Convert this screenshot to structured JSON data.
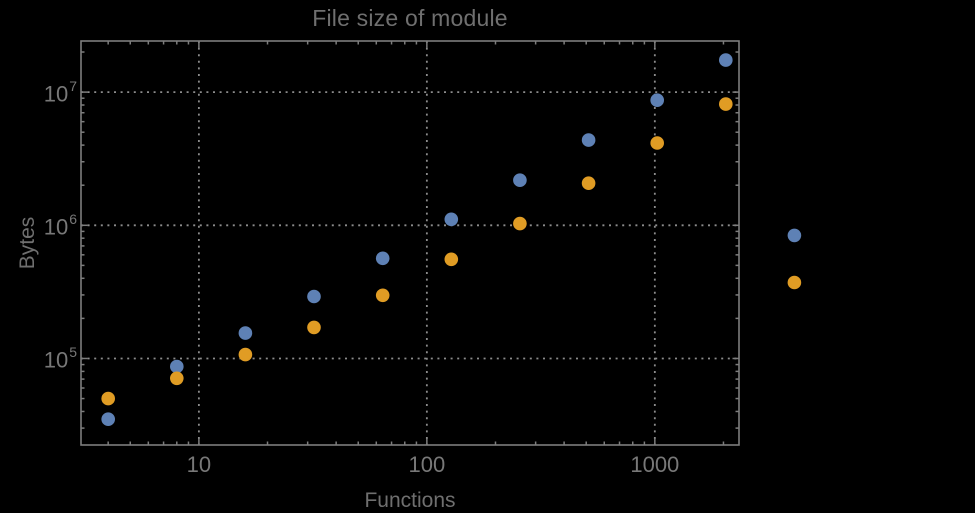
{
  "colors": {
    "background": "#000000",
    "frame": "#7d7d7d",
    "grid": "#8c8c8c",
    "text": "#6f6f6f",
    "tick_text": "#787878",
    "series_blue": "#5e81b5",
    "series_orange": "#e09c24"
  },
  "chart_data": {
    "type": "scatter",
    "title": "File size of module",
    "xlabel": "Functions",
    "ylabel": "Bytes",
    "x_scale": "log",
    "y_scale": "log",
    "xlim": [
      3.04,
      2340
    ],
    "ylim": [
      22400,
      24200000
    ],
    "grid": "major-dotted",
    "legend": "none",
    "frame": true,
    "x_major_ticks": [
      10,
      100,
      1000
    ],
    "x_tick_labels": [
      "10",
      "100",
      "1000"
    ],
    "y_major_ticks": [
      100000,
      1000000,
      10000000
    ],
    "y_tick_base": "10",
    "y_tick_exponents": [
      "5",
      "6",
      "7"
    ],
    "x": [
      4,
      8,
      16,
      32,
      64,
      128,
      256,
      512,
      1024,
      2048,
      4096
    ],
    "series": [
      {
        "name": "blue",
        "color": "#5e81b5",
        "values": [
          35000,
          87000,
          155000,
          292000,
          565000,
          1110000,
          2180000,
          4360000,
          8700000,
          17400000,
          840000
        ]
      },
      {
        "name": "orange",
        "color": "#e09c24",
        "values": [
          50000,
          71000,
          107000,
          171000,
          298000,
          555000,
          1030000,
          2070000,
          4150000,
          8130000,
          372000
        ]
      }
    ]
  }
}
